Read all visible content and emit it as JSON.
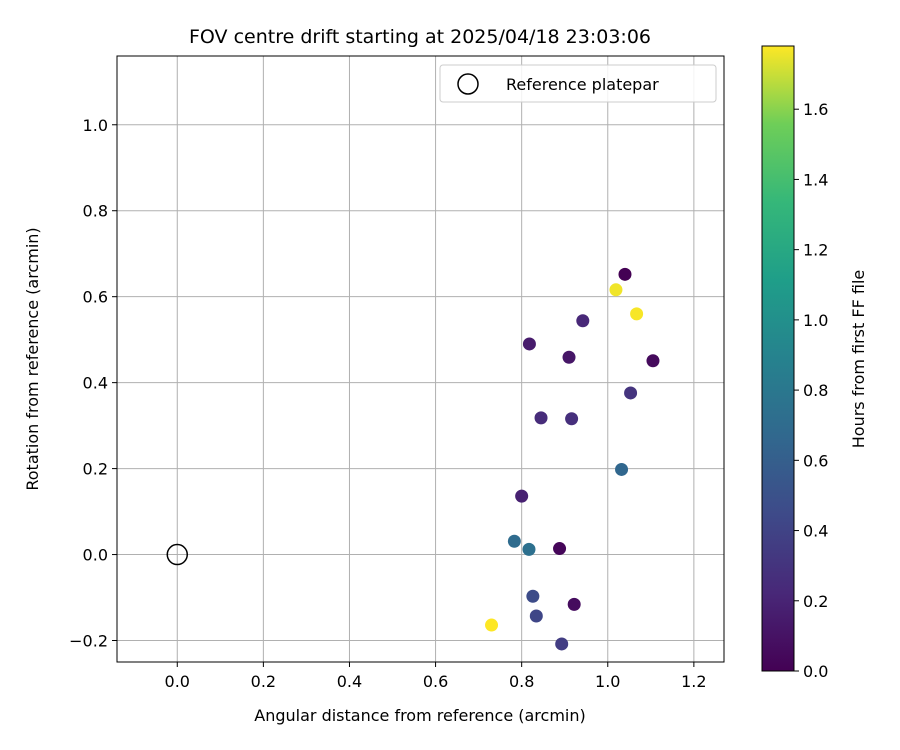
{
  "chart_data": {
    "type": "scatter",
    "title": "FOV centre drift starting at 2025/04/18 23:03:06",
    "xlabel": "Angular distance from reference (arcmin)",
    "ylabel": "Rotation from reference (arcmin)",
    "xlim": [
      -0.14,
      1.27
    ],
    "ylim": [
      -0.25,
      1.16
    ],
    "xticks": [
      0.0,
      0.2,
      0.4,
      0.6,
      0.8,
      1.0,
      1.2
    ],
    "yticks": [
      -0.2,
      0.0,
      0.2,
      0.4,
      0.6,
      0.8,
      1.0
    ],
    "xtick_labels": [
      "0.0",
      "0.2",
      "0.4",
      "0.6",
      "0.8",
      "1.0",
      "1.2"
    ],
    "ytick_labels": [
      "−0.2",
      "0.0",
      "0.2",
      "0.4",
      "0.6",
      "0.8",
      "1.0"
    ],
    "grid": true,
    "colorbar": {
      "label": "Hours from first FF file",
      "colormap": "viridis",
      "range": [
        0.0,
        1.78
      ],
      "ticks": [
        0.0,
        0.2,
        0.4,
        0.6,
        0.8,
        1.0,
        1.2,
        1.4,
        1.6
      ],
      "tick_labels": [
        "0.0",
        "0.2",
        "0.4",
        "0.6",
        "0.8",
        "1.0",
        "1.2",
        "1.4",
        "1.6"
      ]
    },
    "reference": {
      "name": "Reference platepar",
      "x": 0.0,
      "y": 0.0
    },
    "legend": {
      "placement": "top-right",
      "entries": [
        "Reference platepar"
      ]
    },
    "points": [
      {
        "x": 1.04,
        "y": 0.652,
        "hours": 0.0
      },
      {
        "x": 1.105,
        "y": 0.451,
        "hours": 0.05
      },
      {
        "x": 0.888,
        "y": 0.014,
        "hours": 0.03
      },
      {
        "x": 0.922,
        "y": -0.116,
        "hours": 0.06
      },
      {
        "x": 0.91,
        "y": 0.459,
        "hours": 0.12
      },
      {
        "x": 0.818,
        "y": 0.49,
        "hours": 0.15
      },
      {
        "x": 0.8,
        "y": 0.136,
        "hours": 0.18
      },
      {
        "x": 0.942,
        "y": 0.544,
        "hours": 0.22
      },
      {
        "x": 0.845,
        "y": 0.318,
        "hours": 0.25
      },
      {
        "x": 0.916,
        "y": 0.316,
        "hours": 0.27
      },
      {
        "x": 1.053,
        "y": 0.376,
        "hours": 0.3
      },
      {
        "x": 0.893,
        "y": -0.208,
        "hours": 0.36
      },
      {
        "x": 0.834,
        "y": -0.143,
        "hours": 0.42
      },
      {
        "x": 0.826,
        "y": -0.097,
        "hours": 0.46
      },
      {
        "x": 1.032,
        "y": 0.198,
        "hours": 0.66
      },
      {
        "x": 0.783,
        "y": 0.031,
        "hours": 0.7
      },
      {
        "x": 0.817,
        "y": 0.012,
        "hours": 0.74
      },
      {
        "x": 1.019,
        "y": 0.616,
        "hours": 1.76
      },
      {
        "x": 1.067,
        "y": 0.56,
        "hours": 1.77
      },
      {
        "x": 0.73,
        "y": -0.164,
        "hours": 1.78
      }
    ]
  }
}
